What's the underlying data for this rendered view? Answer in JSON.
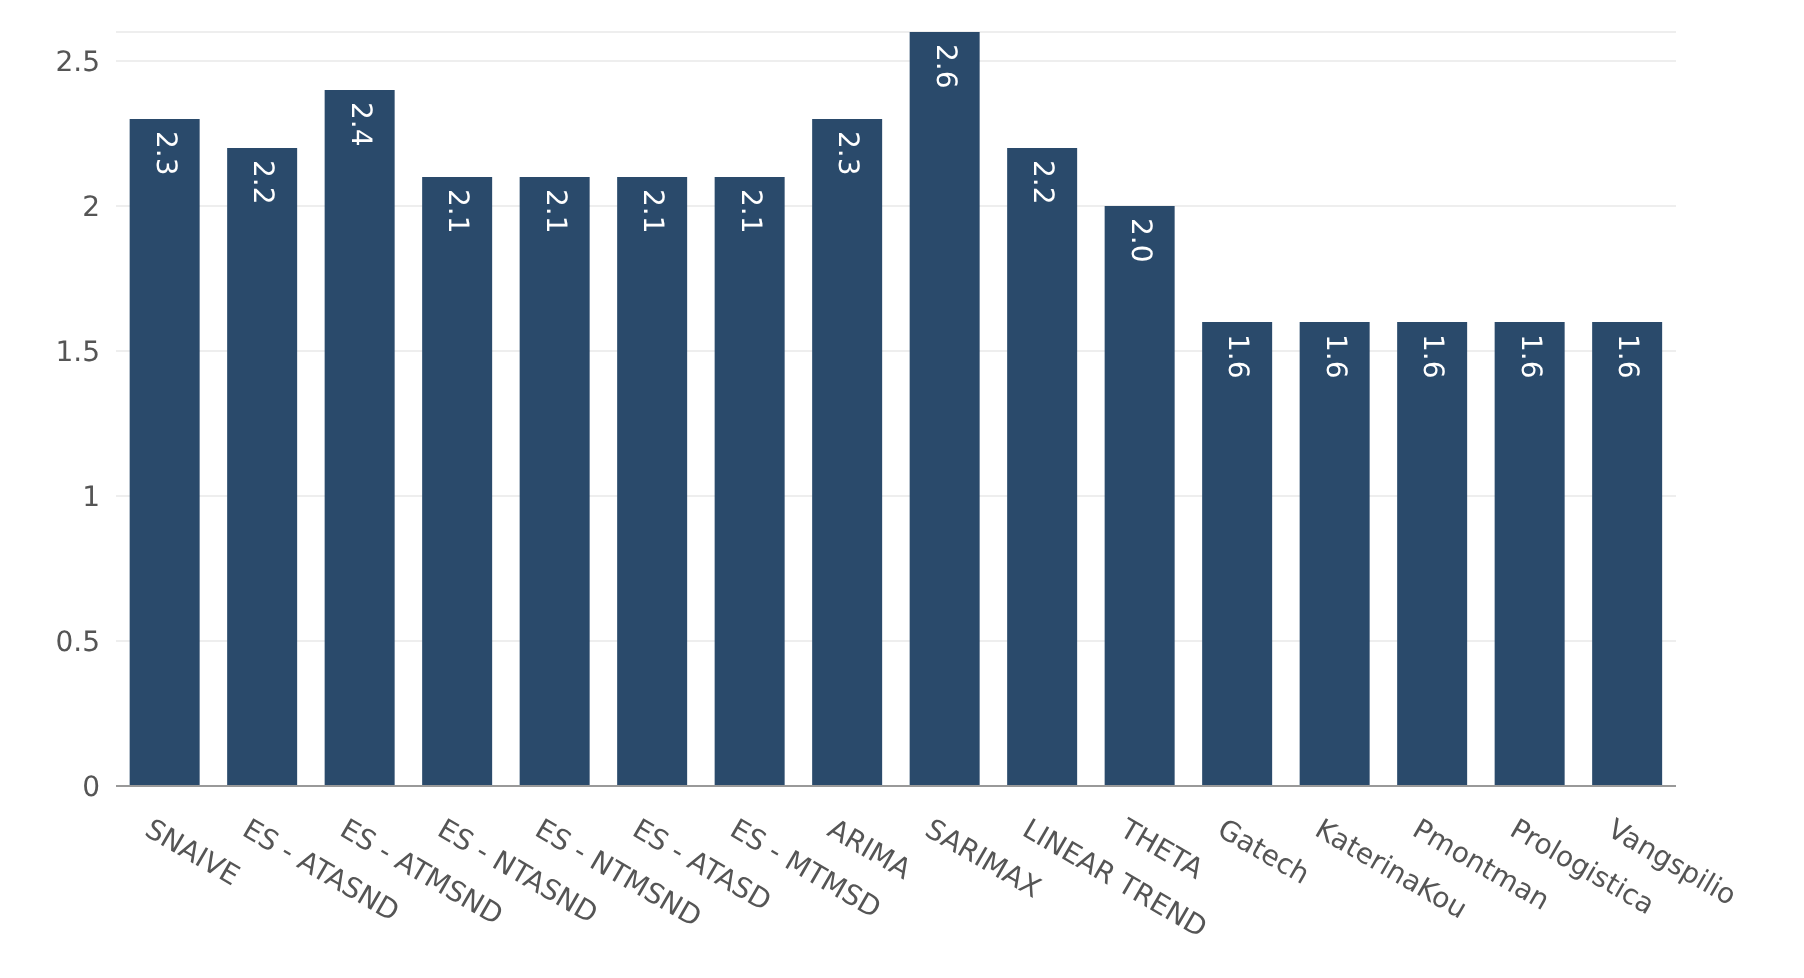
{
  "chart_data": {
    "type": "bar",
    "categories": [
      "SNAIVE",
      "ES - ATASND",
      "ES - ATMSND",
      "ES - NTASND",
      "ES - NTMSND",
      "ES - ATASD",
      "ES - MTMSD",
      "ARIMA",
      "SARIMAX",
      "LINEAR TREND",
      "THETA",
      "Gatech",
      "KaterinaKou",
      "Pmontman",
      "Prologistica",
      "Vangspilio"
    ],
    "values": [
      2.3,
      2.2,
      2.4,
      2.1,
      2.1,
      2.1,
      2.1,
      2.3,
      2.6,
      2.2,
      2.0,
      1.6,
      1.6,
      1.6,
      1.6,
      1.6
    ],
    "value_labels": [
      "2.3",
      "2.2",
      "2.4",
      "2.1",
      "2.1",
      "2.1",
      "2.1",
      "2.3",
      "2.6",
      "2.2",
      "2.0",
      "1.6",
      "1.6",
      "1.6",
      "1.6",
      "1.6"
    ],
    "color": "#2a4a6b",
    "ylim": [
      0,
      2.6
    ],
    "yticks": [
      0,
      0.5,
      1,
      1.5,
      2,
      2.5
    ],
    "grid": "y"
  }
}
